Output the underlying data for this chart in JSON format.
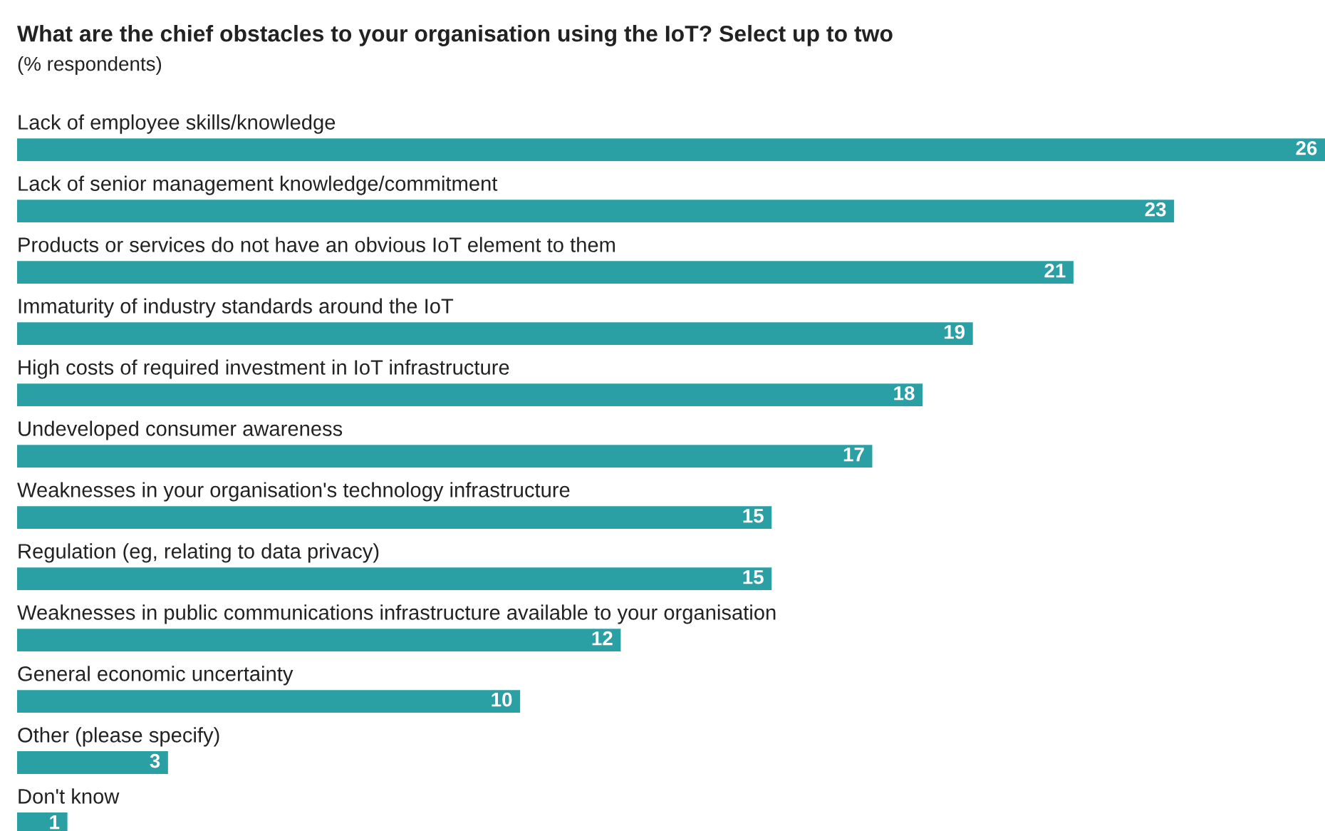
{
  "chart_data": {
    "type": "bar",
    "orientation": "horizontal",
    "title": "What are the chief obstacles to your organisation using the IoT? Select up to two",
    "subtitle": "(% respondents)",
    "categories": [
      "Lack of employee skills/knowledge",
      "Lack of senior management knowledge/commitment",
      "Products or services do not have an obvious IoT element to them",
      "Immaturity of industry standards around the IoT",
      "High costs of required investment in IoT infrastructure",
      "Undeveloped consumer awareness",
      "Weaknesses in your organisation's technology infrastructure",
      "Regulation (eg, relating to data privacy)",
      "Weaknesses in public communications infrastructure available to your organisation",
      "General economic uncertainty",
      "Other (please specify)",
      "Don't know"
    ],
    "values": [
      26,
      23,
      21,
      19,
      18,
      17,
      15,
      15,
      12,
      10,
      3,
      1
    ],
    "color": "#2aa0a4",
    "xlim": [
      0,
      26
    ],
    "data_labels": true
  }
}
